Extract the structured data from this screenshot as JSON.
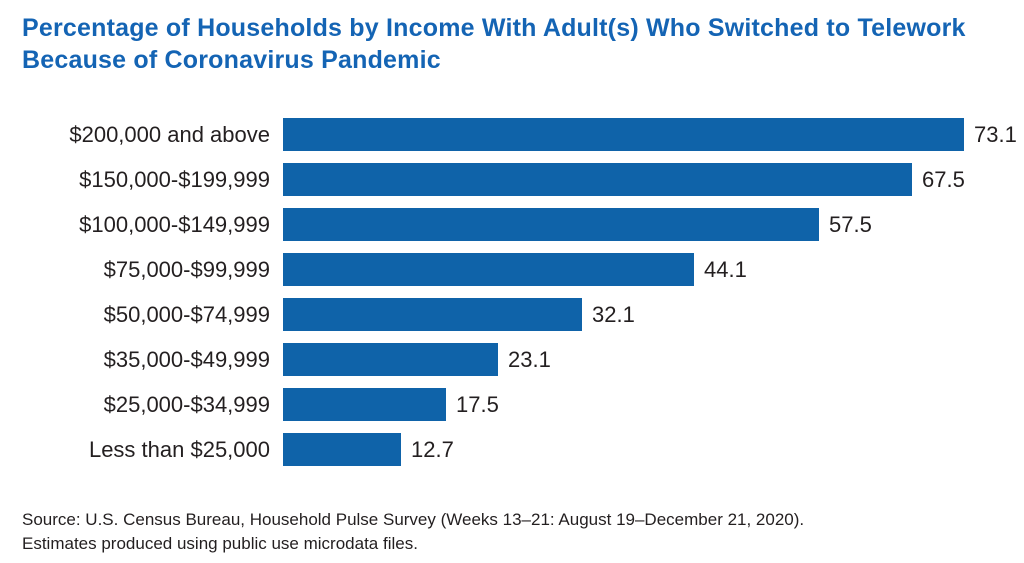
{
  "header": {
    "title": "Percentage of Households by Income With Adult(s) Who Switched to Telework Because of Coronavirus Pandemic"
  },
  "source": {
    "line1": "Source: U.S. Census Bureau, Household Pulse Survey (Weeks 13–21: August 19–December 21, 2020).",
    "line2": "Estimates produced using public use microdata files."
  },
  "colors": {
    "title_blue": "#1464b4",
    "bar_blue": "#0f63a9",
    "text": "#231f20",
    "background": "#ffffff"
  },
  "chart_data": {
    "type": "bar",
    "orientation": "horizontal",
    "title": "Percentage of Households by Income With Adult(s) Who Switched to Telework Because of Coronavirus Pandemic",
    "categories": [
      "$200,000 and above",
      "$150,000-$199,999",
      "$100,000-$149,999",
      "$75,000-$99,999",
      "$50,000-$74,999",
      "$35,000-$49,999",
      "$25,000-$34,999",
      "Less than $25,000"
    ],
    "values": [
      73.1,
      67.5,
      57.5,
      44.1,
      32.1,
      23.1,
      17.5,
      12.7
    ],
    "xlabel": "",
    "ylabel": "",
    "xlim": [
      0,
      78
    ],
    "grid": false,
    "legend": false,
    "data_labels": true,
    "bar_color": "#0f63a9",
    "sort_order": "descending"
  }
}
